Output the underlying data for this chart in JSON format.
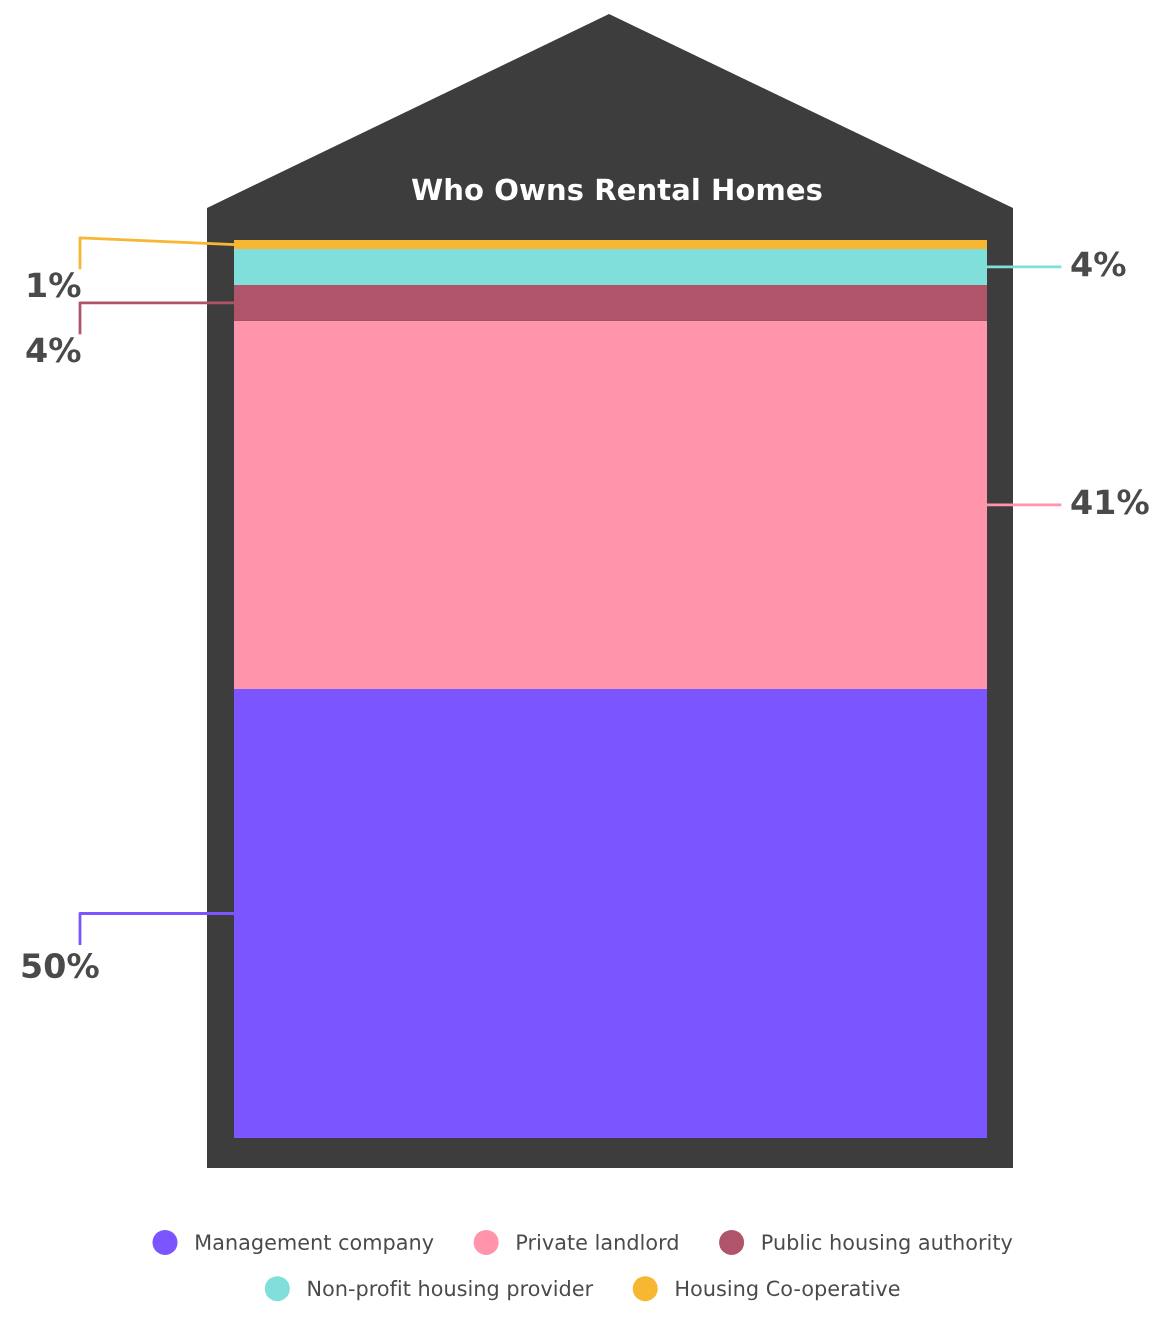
{
  "chart_data": {
    "type": "bar",
    "stacked": true,
    "title": "Who Owns Rental Homes",
    "categories": [
      null
    ],
    "series": [
      {
        "name": "Management company",
        "color": "#7b55ff",
        "values": [
          50
        ],
        "value_labels": [
          "50%"
        ]
      },
      {
        "name": "Private landlord",
        "color": "#ff94aa",
        "values": [
          41
        ],
        "value_labels": [
          "41%"
        ]
      },
      {
        "name": "Public housing authority",
        "color": "#b05569",
        "values": [
          4
        ],
        "value_labels": [
          "4%"
        ]
      },
      {
        "name": "Non-profit housing provider",
        "color": "#80dfda",
        "values": [
          4
        ],
        "value_labels": [
          "4%"
        ]
      },
      {
        "name": "Housing Co-operative",
        "color": "#f8b732",
        "values": [
          1
        ],
        "value_labels": [
          "1%"
        ]
      }
    ],
    "legend": "bottom"
  }
}
